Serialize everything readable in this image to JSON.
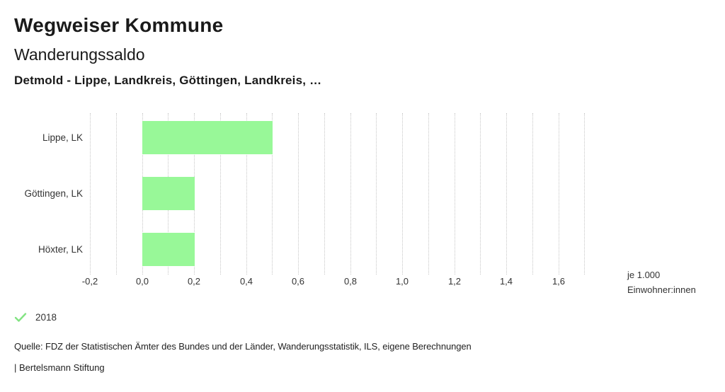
{
  "header": {
    "title": "Wegweiser Kommune",
    "subtitle": "Wanderungssaldo",
    "selection": "Detmold - Lippe, Landkreis, Göttingen, Landkreis, …"
  },
  "legend": {
    "items": [
      {
        "label": "2018",
        "icon": "check-icon",
        "color": "#82e382"
      }
    ]
  },
  "footer": {
    "source": "Quelle: FDZ der Statistischen Ämter des Bundes und der Länder, Wanderungsstatistik, ILS, eigene Berechnungen",
    "branding": "| Bertelsmann Stiftung"
  },
  "chart_data": {
    "type": "bar",
    "orientation": "horizontal",
    "title": "Wanderungssaldo",
    "subtitle": "Detmold - Lippe, Landkreis, Göttingen, Landkreis, …",
    "categories": [
      "Lippe, LK",
      "Göttingen, LK",
      "Höxter, LK"
    ],
    "series": [
      {
        "name": "2018",
        "values": [
          0.5,
          0.2,
          0.2
        ],
        "color": "#98f898"
      }
    ],
    "xlabel_lines": [
      "je 1.000",
      "Einwohner:innen"
    ],
    "xlim": [
      -0.2,
      1.7
    ],
    "grid_step": 0.1,
    "grid": true,
    "gridline_color": "#c6c6c6",
    "x_ticks": [
      {
        "value": -0.2,
        "label": "-0,2"
      },
      {
        "value": 0.0,
        "label": "0,0"
      },
      {
        "value": 0.2,
        "label": "0,2"
      },
      {
        "value": 0.4,
        "label": "0,4"
      },
      {
        "value": 0.6,
        "label": "0,6"
      },
      {
        "value": 0.8,
        "label": "0,8"
      },
      {
        "value": 1.0,
        "label": "1,0"
      },
      {
        "value": 1.2,
        "label": "1,2"
      },
      {
        "value": 1.4,
        "label": "1,4"
      },
      {
        "value": 1.6,
        "label": "1,6"
      }
    ],
    "legend_position": "bottom-left"
  }
}
